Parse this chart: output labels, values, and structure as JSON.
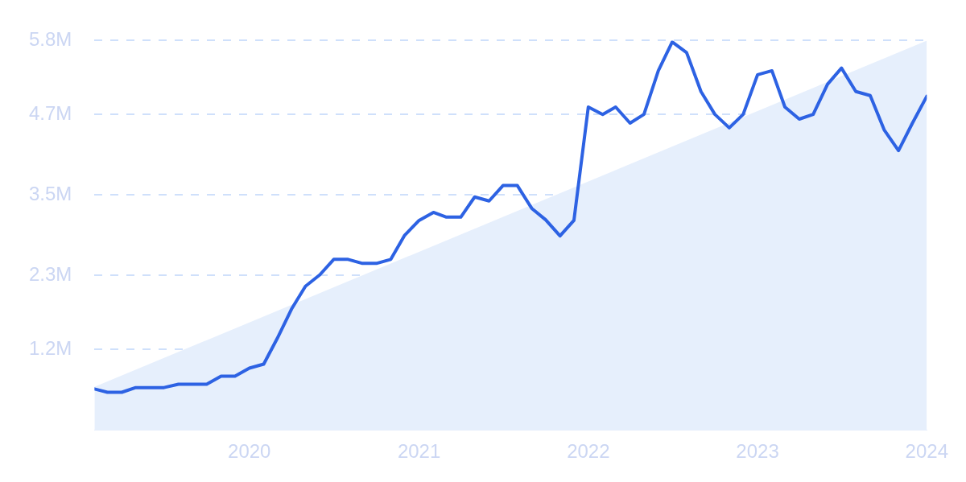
{
  "chart_data": {
    "type": "line",
    "x": [
      "2019-02",
      "2019-03",
      "2019-04",
      "2019-05",
      "2019-06",
      "2019-07",
      "2019-08",
      "2019-09",
      "2019-10",
      "2019-11",
      "2019-12",
      "2020-01",
      "2020-02",
      "2020-03",
      "2020-04",
      "2020-05",
      "2020-06",
      "2020-07",
      "2020-08",
      "2020-09",
      "2020-10",
      "2020-11",
      "2020-12",
      "2021-01",
      "2021-02",
      "2021-03",
      "2021-04",
      "2021-05",
      "2021-06",
      "2021-07",
      "2021-08",
      "2021-09",
      "2021-10",
      "2021-11",
      "2021-12",
      "2022-01",
      "2022-02",
      "2022-03",
      "2022-04",
      "2022-05",
      "2022-06",
      "2022-07",
      "2022-08",
      "2022-09",
      "2022-10",
      "2022-11",
      "2022-12",
      "2023-01",
      "2023-02",
      "2023-03",
      "2023-04",
      "2023-05",
      "2023-06",
      "2023-07",
      "2023-08",
      "2023-09",
      "2023-10",
      "2023-11",
      "2023-12",
      "2024-01"
    ],
    "series": [
      {
        "type": "area",
        "color": "#e6effc",
        "x": [
          "2019-02",
          "2024-01"
        ],
        "values": [
          0.64,
          5.8
        ]
      },
      {
        "color": "#2d62e3",
        "values": [
          0.61,
          0.56,
          0.56,
          0.63,
          0.63,
          0.63,
          0.68,
          0.68,
          0.68,
          0.8,
          0.8,
          0.92,
          0.98,
          1.36,
          1.8,
          2.14,
          2.31,
          2.54,
          2.54,
          2.48,
          2.48,
          2.54,
          2.9,
          3.12,
          3.24,
          3.17,
          3.17,
          3.47,
          3.41,
          3.64,
          3.64,
          3.3,
          3.13,
          2.89,
          3.12,
          4.81,
          4.7,
          4.81,
          4.57,
          4.7,
          5.35,
          5.78,
          5.62,
          5.04,
          4.7,
          4.5,
          4.7,
          5.29,
          5.35,
          4.81,
          4.63,
          4.7,
          5.15,
          5.39,
          5.04,
          4.98,
          4.47,
          4.16,
          4.57,
          4.97
        ]
      }
    ],
    "xlim": [
      "2019-02",
      "2024-01"
    ],
    "xticks": [
      "2020",
      "2021",
      "2022",
      "2023",
      "2024"
    ],
    "ylim": [
      0,
      5.8
    ],
    "yticks": [
      {
        "value": 1.2,
        "label": "1.2M"
      },
      {
        "value": 2.3,
        "label": "2.3M"
      },
      {
        "value": 3.5,
        "label": "3.5M"
      },
      {
        "value": 4.7,
        "label": "4.7M"
      },
      {
        "value": 5.8,
        "label": "5.8M"
      }
    ],
    "grid": "y"
  }
}
